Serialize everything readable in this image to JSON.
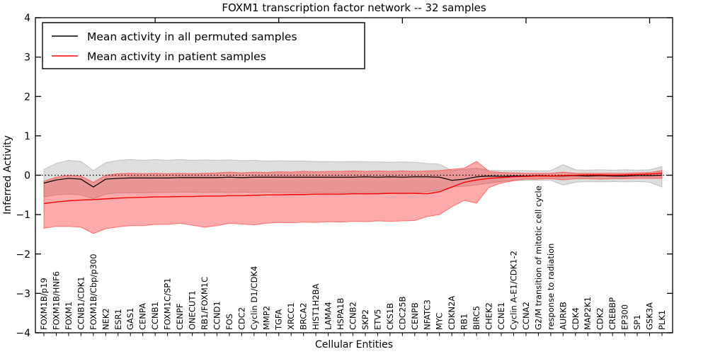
{
  "chart_data": {
    "type": "line",
    "title": "FOXM1 transcription factor network -- 32 samples",
    "xlabel": "Cellular Entities",
    "ylabel": "Inferred Activity",
    "ylim": [
      -4,
      4
    ],
    "yticks": [
      -4,
      -3,
      -2,
      -1,
      0,
      1,
      2,
      3,
      4
    ],
    "top_tick_indices": [
      9,
      19,
      29,
      39,
      49
    ],
    "grid": false,
    "zero_line": true,
    "legend_position": "upper-left",
    "legend": [
      {
        "label": "Mean activity in all permuted samples",
        "color": "#000000"
      },
      {
        "label": "Mean activity in patient samples",
        "color": "#ff0000"
      }
    ],
    "colors": {
      "permuted_line": "#000000",
      "patient_line": "#ff0000",
      "permuted_band": "rgba(0,0,0,0.13)",
      "patient_band": "rgba(255,0,0,0.33)",
      "patient_band_edge": "rgba(255,60,60,0.65)",
      "permuted_band_edge": "rgba(0,0,0,0.18)"
    },
    "categories": [
      "FOXM1B/p19",
      "FOXM1B/HNF6",
      "FOXM1",
      "CCNB1/CDK1",
      "FOXM1B/Cbp/p300",
      "NEK2",
      "ESR1",
      "GAS1",
      "CENPA",
      "CCNB1",
      "FOXM1C/SP1",
      "CENPF",
      "ONECUT1",
      "RB1/FOXM1C",
      "CCND1",
      "FOS",
      "CDC2",
      "Cyclin D1/CDK4",
      "MMP2",
      "TGFA",
      "XRCC1",
      "BRCA2",
      "HIST1H2BA",
      "LAMA4",
      "HSPA1B",
      "CCNB2",
      "SKP2",
      "ETV5",
      "CKS1B",
      "CDC25B",
      "CENPB",
      "NFATC3",
      "MYC",
      "CDKN2A",
      "RB1",
      "BIRC5",
      "CHEK2",
      "CCNE1",
      "Cyclin A-E1/CDK1-2",
      "CCNA2",
      "G2/M transition of mitotic cell cycle",
      "response to radiation",
      "AURKB",
      "CDK4",
      "MAP2K1",
      "CDK2",
      "CREBBP",
      "EP300",
      "SP1",
      "GSK3A",
      "PLK1"
    ],
    "series": [
      {
        "name": "Mean activity in all permuted samples",
        "values": [
          -0.2,
          -0.12,
          -0.08,
          -0.1,
          -0.3,
          -0.1,
          -0.08,
          -0.07,
          -0.07,
          -0.07,
          -0.07,
          -0.06,
          -0.06,
          -0.06,
          -0.06,
          -0.05,
          -0.06,
          -0.05,
          -0.05,
          -0.05,
          -0.05,
          -0.05,
          -0.05,
          -0.05,
          -0.05,
          -0.05,
          -0.04,
          -0.05,
          -0.04,
          -0.05,
          -0.04,
          -0.04,
          -0.05,
          -0.13,
          -0.1,
          -0.04,
          -0.02,
          -0.03,
          -0.02,
          -0.02,
          -0.01,
          -0.02,
          -0.02,
          -0.01,
          -0.02,
          -0.01,
          -0.02,
          -0.02,
          -0.01,
          -0.01,
          0.0
        ]
      },
      {
        "name": "Permuted band upper",
        "values": [
          0.15,
          0.3,
          0.38,
          0.35,
          0.12,
          0.32,
          0.38,
          0.4,
          0.38,
          0.4,
          0.38,
          0.4,
          0.38,
          0.39,
          0.38,
          0.39,
          0.37,
          0.38,
          0.36,
          0.37,
          0.36,
          0.36,
          0.35,
          0.35,
          0.34,
          0.35,
          0.34,
          0.34,
          0.33,
          0.34,
          0.33,
          0.3,
          0.28,
          0.12,
          0.15,
          0.18,
          0.13,
          0.12,
          0.12,
          0.12,
          0.11,
          0.12,
          0.27,
          0.14,
          0.13,
          0.14,
          0.13,
          0.14,
          0.13,
          0.14,
          0.22
        ]
      },
      {
        "name": "Permuted band lower",
        "values": [
          -0.55,
          -0.5,
          -0.48,
          -0.5,
          -0.6,
          -0.48,
          -0.45,
          -0.45,
          -0.45,
          -0.44,
          -0.44,
          -0.43,
          -0.43,
          -0.44,
          -0.43,
          -0.44,
          -0.43,
          -0.44,
          -0.43,
          -0.44,
          -0.44,
          -0.45,
          -0.44,
          -0.45,
          -0.44,
          -0.45,
          -0.44,
          -0.45,
          -0.45,
          -0.46,
          -0.45,
          -0.42,
          -0.38,
          -0.3,
          -0.28,
          -0.25,
          -0.2,
          -0.16,
          -0.14,
          -0.13,
          -0.13,
          -0.13,
          -0.25,
          -0.18,
          -0.16,
          -0.17,
          -0.16,
          -0.17,
          -0.16,
          -0.18,
          -0.3
        ]
      },
      {
        "name": "Mean activity in patient samples",
        "values": [
          -0.72,
          -0.68,
          -0.65,
          -0.63,
          -0.62,
          -0.6,
          -0.58,
          -0.57,
          -0.56,
          -0.55,
          -0.55,
          -0.54,
          -0.54,
          -0.53,
          -0.53,
          -0.52,
          -0.52,
          -0.51,
          -0.5,
          -0.5,
          -0.49,
          -0.49,
          -0.48,
          -0.48,
          -0.48,
          -0.47,
          -0.47,
          -0.47,
          -0.46,
          -0.46,
          -0.46,
          -0.47,
          -0.42,
          -0.3,
          -0.18,
          -0.12,
          -0.08,
          -0.06,
          -0.04,
          -0.03,
          -0.02,
          -0.02,
          -0.01,
          0.0,
          0.01,
          0.01,
          0.0,
          0.01,
          0.02,
          0.03,
          0.05
        ]
      },
      {
        "name": "Patient band upper",
        "values": [
          -0.15,
          -0.05,
          0.0,
          -0.02,
          -0.18,
          0.0,
          0.04,
          0.05,
          0.04,
          0.05,
          0.04,
          0.05,
          0.04,
          0.05,
          0.06,
          0.08,
          0.06,
          0.08,
          0.07,
          0.09,
          0.08,
          0.1,
          0.09,
          0.1,
          0.1,
          0.11,
          0.1,
          0.11,
          0.1,
          0.11,
          0.1,
          0.11,
          0.12,
          0.15,
          0.18,
          0.35,
          0.1,
          0.07,
          0.06,
          0.05,
          0.05,
          0.05,
          0.08,
          0.05,
          0.05,
          0.05,
          0.05,
          0.05,
          0.06,
          0.07,
          0.12
        ]
      },
      {
        "name": "Patient band lower",
        "values": [
          -1.35,
          -1.3,
          -1.3,
          -1.32,
          -1.48,
          -1.36,
          -1.31,
          -1.28,
          -1.28,
          -1.25,
          -1.25,
          -1.22,
          -1.27,
          -1.32,
          -1.28,
          -1.22,
          -1.24,
          -1.26,
          -1.22,
          -1.2,
          -1.21,
          -1.19,
          -1.2,
          -1.18,
          -1.19,
          -1.17,
          -1.18,
          -1.16,
          -1.17,
          -1.16,
          -1.15,
          -1.05,
          -1.0,
          -0.8,
          -0.64,
          -0.71,
          -0.31,
          -0.2,
          -0.14,
          -0.1,
          -0.1,
          -0.09,
          -0.12,
          -0.09,
          -0.09,
          -0.1,
          -0.09,
          -0.09,
          -0.08,
          -0.08,
          -0.08
        ]
      }
    ]
  }
}
